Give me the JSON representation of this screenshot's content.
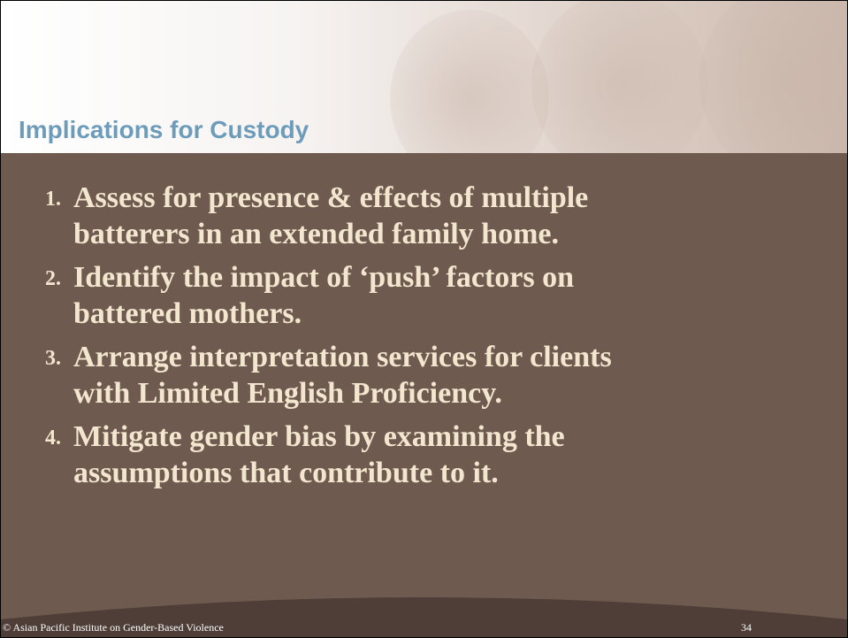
{
  "header": {
    "title": "Implications for Custody"
  },
  "items": [
    {
      "number": "1.",
      "lines": [
        "Assess for presence & effects of multiple",
        "batterers in an extended family home."
      ]
    },
    {
      "number": "2.",
      "lines": [
        "Identify the impact of ‘push’ factors on",
        "battered mothers."
      ]
    },
    {
      "number": "3.",
      "lines": [
        "Arrange interpretation services for clients",
        "with Limited English Proficiency."
      ]
    },
    {
      "number": "4.",
      "lines": [
        "Mitigate gender bias by examining the",
        "assumptions that contribute to it."
      ]
    }
  ],
  "footer": {
    "copyright": "© Asian Pacific Institute on Gender-Based Violence",
    "page": "34"
  }
}
